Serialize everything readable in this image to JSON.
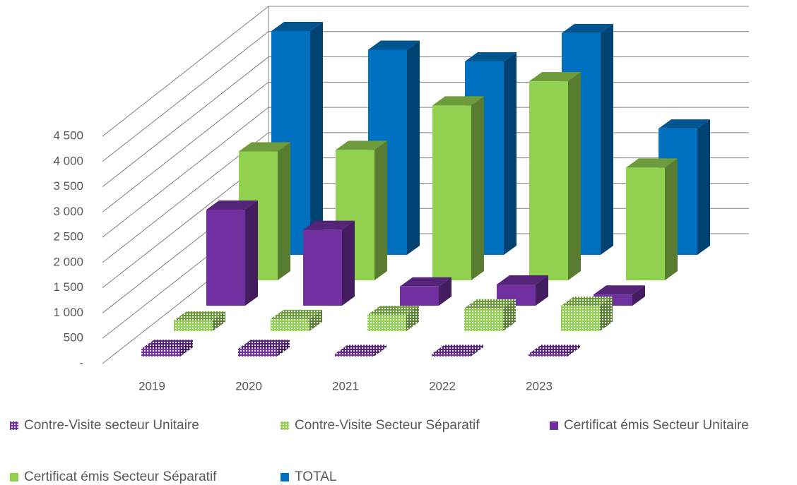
{
  "chart_data": {
    "type": "bar3d",
    "categories": [
      "2019",
      "2020",
      "2021",
      "2022",
      "2023"
    ],
    "series": [
      {
        "name": "Contre-Visite secteur Unitaire",
        "color": "#7030a0",
        "pattern": "dots",
        "values": [
          150,
          150,
          50,
          50,
          50
        ]
      },
      {
        "name": "Contre-Visite Secteur Séparatif",
        "color": "#92d050",
        "pattern": "dots",
        "values": [
          210,
          240,
          320,
          450,
          500
        ]
      },
      {
        "name": "Certificat émis Secteur Unitaire",
        "color": "#7030a0",
        "values": [
          1900,
          1500,
          380,
          420,
          220
        ]
      },
      {
        "name": "Certificat émis Secteur Séparatif",
        "color": "#92d050",
        "values": [
          2550,
          2580,
          3460,
          3940,
          2230
        ]
      },
      {
        "name": "TOTAL",
        "color": "#0070c0",
        "values": [
          4430,
          4060,
          3830,
          4390,
          2500
        ]
      }
    ],
    "ylim": [
      0,
      4500
    ],
    "yticks": [
      {
        "value": 0,
        "label": "-"
      },
      500,
      {
        "value": 1000,
        "label": "1 000"
      },
      {
        "value": 1500,
        "label": "1 500"
      },
      {
        "value": 2000,
        "label": "2 000"
      },
      {
        "value": 2500,
        "label": "2 500"
      },
      {
        "value": 3000,
        "label": "3 000"
      },
      {
        "value": 3500,
        "label": "3 500"
      },
      {
        "value": 4000,
        "label": "4 000"
      },
      {
        "value": 4500,
        "label": "4 500"
      }
    ],
    "grid": true
  }
}
